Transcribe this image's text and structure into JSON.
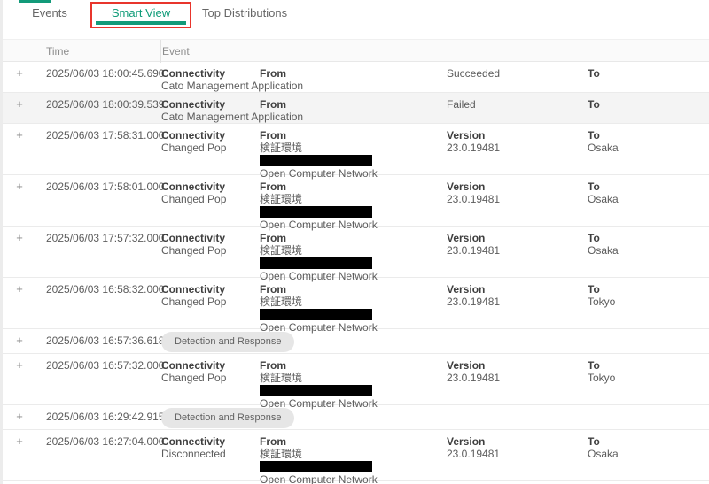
{
  "colors": {
    "accent_green": "#129a79",
    "annotation_red": "#e8352c"
  },
  "tabs": {
    "events": "Events",
    "smart_view": "Smart View",
    "top_distributions": "Top Distributions"
  },
  "table": {
    "expand_icon": "+",
    "headers": {
      "time": "Time",
      "event": "Event"
    },
    "rows": [
      {
        "kind": "cma",
        "shaded": false,
        "time": "2025/06/03 18:00:45.690",
        "type_title": "Connectivity",
        "type_sub": "Cato Management Application",
        "from_label": "From",
        "status": "Succeeded",
        "to_label": "To"
      },
      {
        "kind": "cma",
        "shaded": true,
        "time": "2025/06/03 18:00:39.539",
        "type_title": "Connectivity",
        "type_sub": "Cato Management Application",
        "from_label": "From",
        "status": "Failed",
        "to_label": "To"
      },
      {
        "kind": "pop",
        "shaded": false,
        "time": "2025/06/03 17:58:31.000",
        "type_title": "Connectivity",
        "type_sub": "Changed Pop",
        "from_label": "From",
        "from_site": "検証環境",
        "from_network": "Open Computer Network",
        "version_label": "Version",
        "version": "23.0.19481",
        "to_label": "To",
        "to_value": "Osaka"
      },
      {
        "kind": "pop",
        "shaded": false,
        "time": "2025/06/03 17:58:01.000",
        "type_title": "Connectivity",
        "type_sub": "Changed Pop",
        "from_label": "From",
        "from_site": "検証環境",
        "from_network": "Open Computer Network",
        "version_label": "Version",
        "version": "23.0.19481",
        "to_label": "To",
        "to_value": "Osaka"
      },
      {
        "kind": "pop",
        "shaded": false,
        "time": "2025/06/03 17:57:32.000",
        "type_title": "Connectivity",
        "type_sub": "Changed Pop",
        "from_label": "From",
        "from_site": "検証環境",
        "from_network": "Open Computer Network",
        "version_label": "Version",
        "version": "23.0.19481",
        "to_label": "To",
        "to_value": "Osaka"
      },
      {
        "kind": "pop",
        "shaded": false,
        "time": "2025/06/03 16:58:32.000",
        "type_title": "Connectivity",
        "type_sub": "Changed Pop",
        "from_label": "From",
        "from_site": "検証環境",
        "from_network": "Open Computer Network",
        "version_label": "Version",
        "version": "23.0.19481",
        "to_label": "To",
        "to_value": "Tokyo"
      },
      {
        "kind": "chip",
        "shaded": false,
        "time": "2025/06/03 16:57:36.618",
        "chip_label": "Detection and Response"
      },
      {
        "kind": "pop",
        "shaded": false,
        "time": "2025/06/03 16:57:32.000",
        "type_title": "Connectivity",
        "type_sub": "Changed Pop",
        "from_label": "From",
        "from_site": "検証環境",
        "from_network": "Open Computer Network",
        "version_label": "Version",
        "version": "23.0.19481",
        "to_label": "To",
        "to_value": "Tokyo"
      },
      {
        "kind": "chip",
        "shaded": false,
        "time": "2025/06/03 16:29:42.915",
        "chip_label": "Detection and Response"
      },
      {
        "kind": "pop",
        "shaded": false,
        "time": "2025/06/03 16:27:04.000",
        "type_title": "Connectivity",
        "type_sub": "Disconnected",
        "from_label": "From",
        "from_site": "検証環境",
        "from_network": "Open Computer Network",
        "version_label": "Version",
        "version": "23.0.19481",
        "to_label": "To",
        "to_value": "Osaka"
      }
    ]
  }
}
